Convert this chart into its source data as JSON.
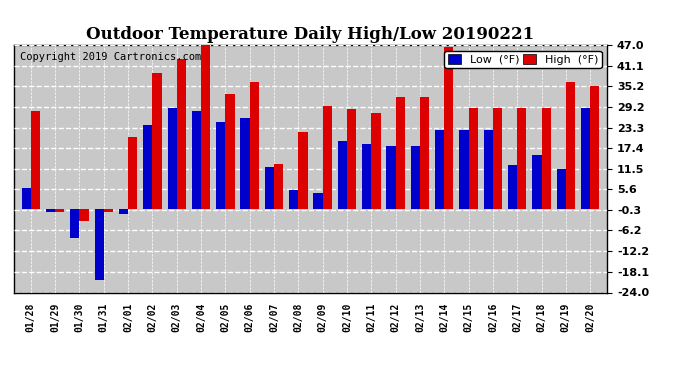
{
  "title": "Outdoor Temperature Daily High/Low 20190221",
  "copyright": "Copyright 2019 Cartronics.com",
  "legend_low": "Low  (°F)",
  "legend_high": "High  (°F)",
  "dates": [
    "01/28",
    "01/29",
    "01/30",
    "01/31",
    "02/01",
    "02/02",
    "02/03",
    "02/04",
    "02/05",
    "02/06",
    "02/07",
    "02/08",
    "02/09",
    "02/10",
    "02/11",
    "02/12",
    "02/13",
    "02/14",
    "02/15",
    "02/16",
    "02/17",
    "02/18",
    "02/19",
    "02/20"
  ],
  "high": [
    28.0,
    -1.0,
    -3.5,
    -1.0,
    20.5,
    39.0,
    43.0,
    48.0,
    33.0,
    36.5,
    13.0,
    22.0,
    29.5,
    28.5,
    27.5,
    32.0,
    32.0,
    46.5,
    29.0,
    29.0,
    29.0,
    29.0,
    36.5,
    35.2
  ],
  "low": [
    6.0,
    -1.0,
    -8.5,
    -20.5,
    -1.5,
    24.0,
    29.0,
    28.0,
    25.0,
    26.0,
    12.0,
    5.5,
    4.5,
    19.5,
    18.5,
    18.0,
    18.0,
    22.5,
    22.5,
    22.5,
    12.5,
    15.5,
    11.5,
    29.0
  ],
  "ylim": [
    -24.0,
    47.0
  ],
  "yticks": [
    47.0,
    41.1,
    35.2,
    29.2,
    23.3,
    17.4,
    11.5,
    5.6,
    -0.3,
    -6.2,
    -12.2,
    -18.1,
    -24.0
  ],
  "bar_width": 0.38,
  "low_color": "#0000cc",
  "high_color": "#dd0000",
  "plot_bg_color": "#c8c8c8",
  "fig_bg_color": "#ffffff",
  "grid_color": "#ffffff",
  "title_fontsize": 12,
  "copyright_fontsize": 7.5
}
